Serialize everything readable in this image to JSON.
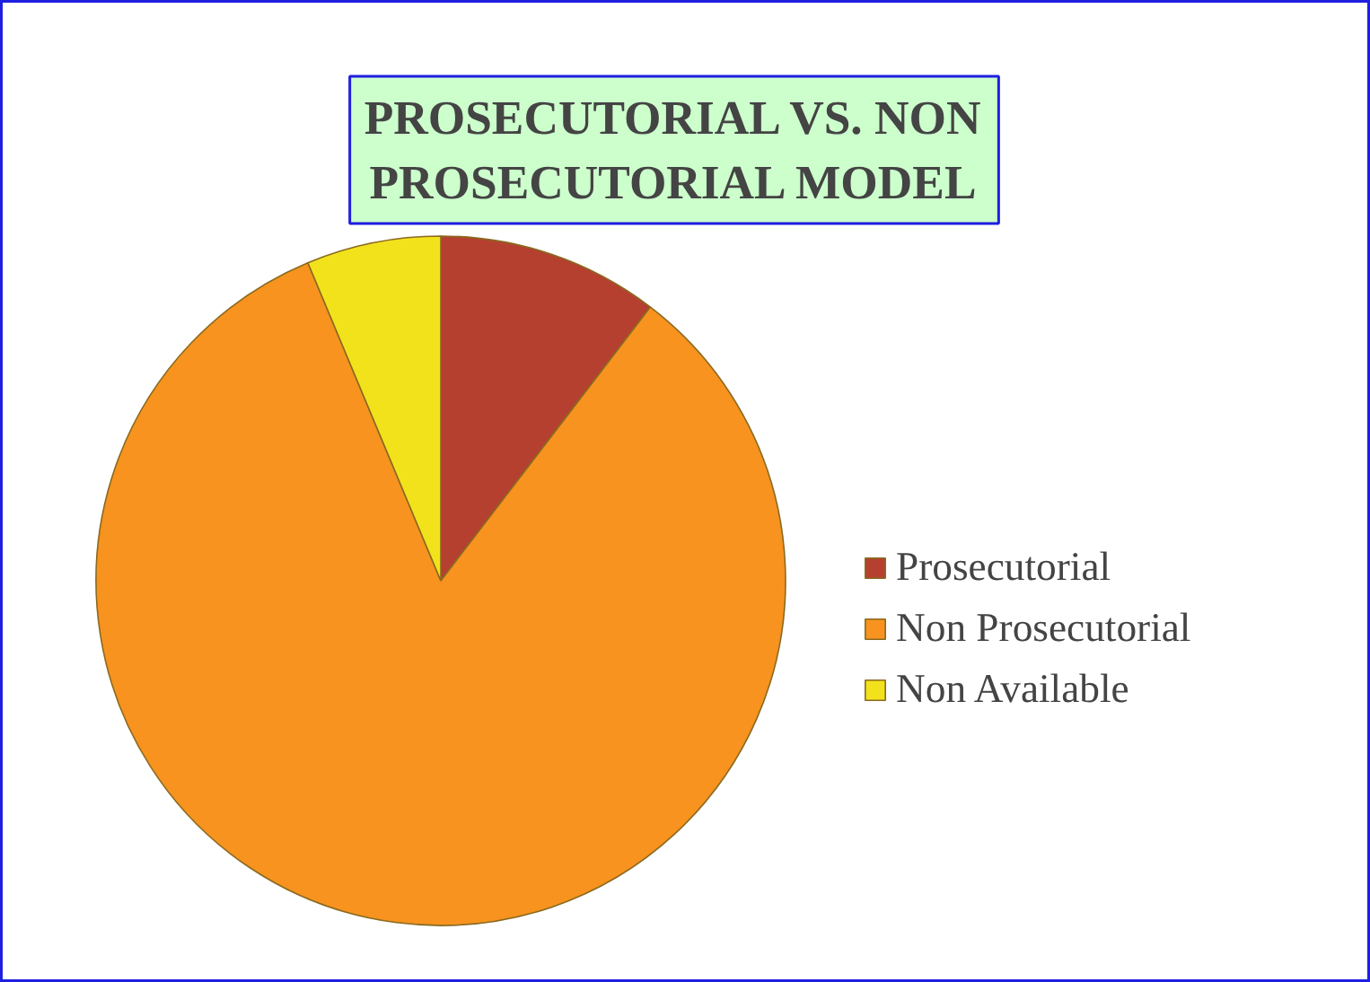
{
  "chart_data": {
    "type": "pie",
    "title": "PROSECUTORIAL VS. NON PROSECUTORIAL MODEL",
    "categories": [
      "Prosecutorial",
      "Non Prosecutorial",
      "Non Available"
    ],
    "values": [
      10.4,
      83.3,
      6.3
    ],
    "colors": [
      "#b5402f",
      "#f7931e",
      "#f2e21c"
    ],
    "legend": "right"
  }
}
